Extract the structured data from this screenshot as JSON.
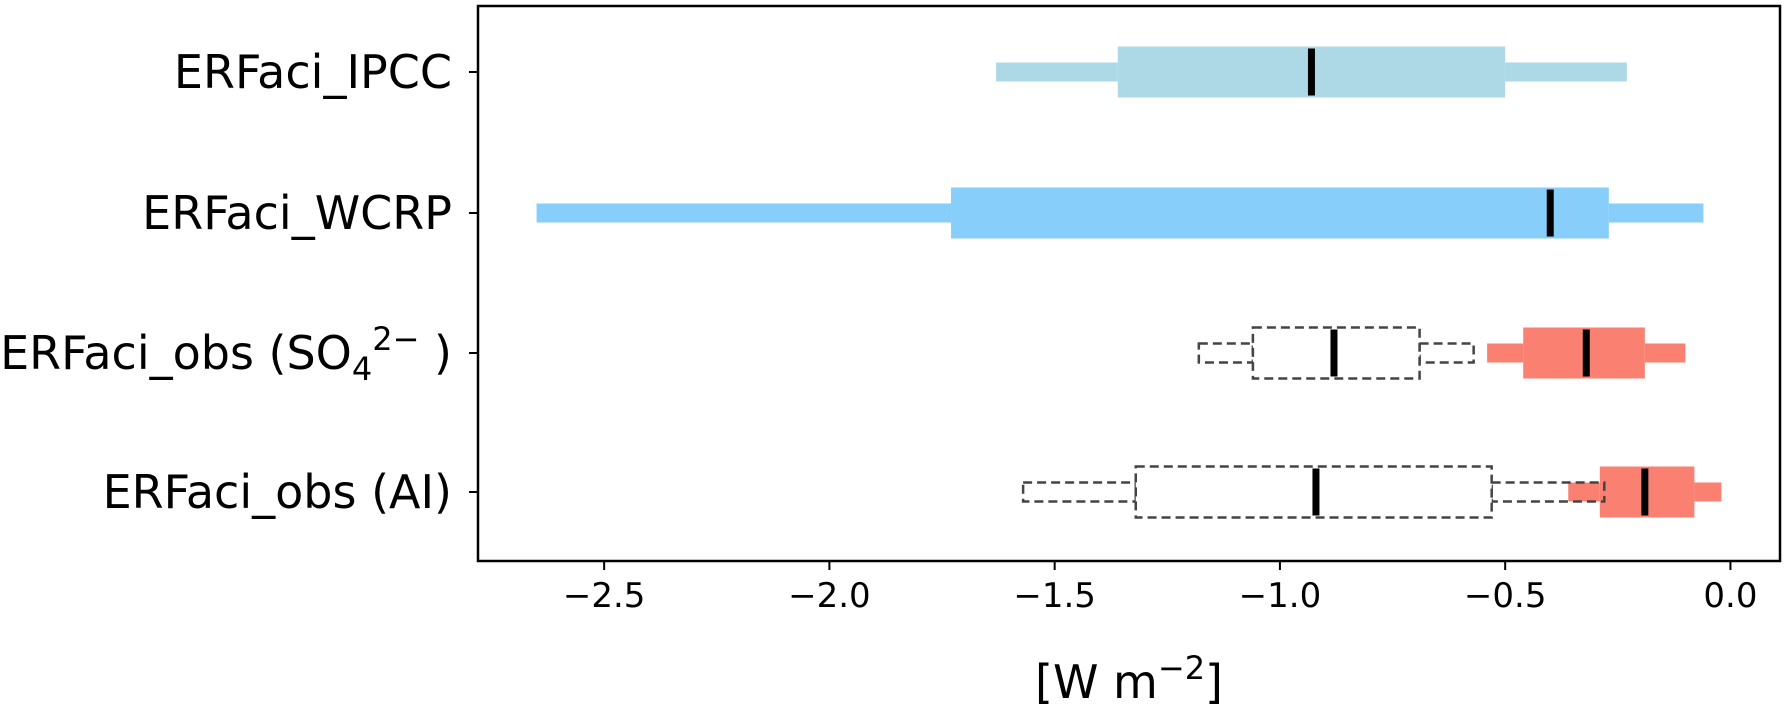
{
  "chart_data": {
    "type": "box",
    "orientation": "horizontal",
    "title": "",
    "xlabel_parts": {
      "prefix": "[W m",
      "sup": "−2",
      "suffix": "]"
    },
    "xlim": [
      -2.78,
      0.11
    ],
    "xticks": [
      -2.5,
      -2.0,
      -1.5,
      -1.0,
      -0.5,
      0.0
    ],
    "xtick_labels": [
      "−2.5",
      "−2.0",
      "−1.5",
      "−1.0",
      "−0.5",
      "0.0"
    ],
    "grid": false,
    "categories": [
      {
        "key": "ipcc",
        "parts": [
          {
            "t": "ERFaci_IPCC"
          }
        ]
      },
      {
        "key": "wcrp",
        "parts": [
          {
            "t": "ERFaci_WCRP"
          }
        ]
      },
      {
        "key": "so4",
        "parts": [
          {
            "t": "ERFaci_obs (SO"
          },
          {
            "t": "4",
            "pos": "sub"
          },
          {
            "t": "2−",
            "pos": "sup"
          },
          {
            "t": " )"
          }
        ]
      },
      {
        "key": "ai",
        "parts": [
          {
            "t": "ERFaci_obs (AI)"
          }
        ]
      }
    ],
    "boxes": [
      {
        "category": "ipcc",
        "style": "filled",
        "color": "#add8e6",
        "whisker_low": -1.63,
        "q1": -1.36,
        "median": -0.93,
        "q3": -0.5,
        "whisker_high": -0.23,
        "offset": 0
      },
      {
        "category": "wcrp",
        "style": "filled",
        "color": "#87cefa",
        "whisker_low": -2.65,
        "q1": -1.73,
        "median": -0.4,
        "q3": -0.27,
        "whisker_high": -0.06,
        "offset": 0
      },
      {
        "category": "so4",
        "style": "dashed",
        "color": "#444444",
        "whisker_low": -1.18,
        "q1": -1.06,
        "median": -0.88,
        "q3": -0.69,
        "whisker_high": -0.57,
        "offset": 0
      },
      {
        "category": "so4",
        "style": "filled",
        "color": "#fa8072",
        "whisker_low": -0.54,
        "q1": -0.46,
        "median": -0.32,
        "q3": -0.19,
        "whisker_high": -0.1,
        "offset": 0
      },
      {
        "category": "ai",
        "style": "dashed",
        "color": "#444444",
        "whisker_low": -1.57,
        "q1": -1.32,
        "median": -0.92,
        "q3": -0.53,
        "whisker_high": -0.28,
        "offset": 0
      },
      {
        "category": "ai",
        "style": "filled",
        "color": "#fa8072",
        "whisker_low": -0.36,
        "q1": -0.29,
        "median": -0.19,
        "q3": -0.08,
        "whisker_high": -0.02,
        "offset": 0
      }
    ]
  }
}
